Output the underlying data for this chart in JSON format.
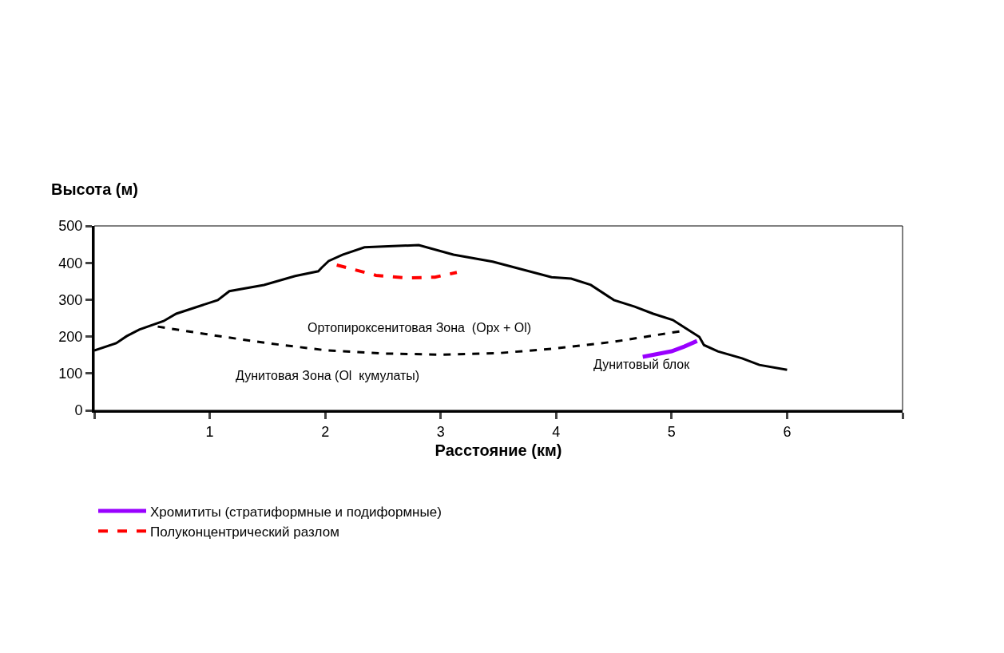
{
  "chart_data": {
    "type": "line",
    "xlabel": "Расстояние (км)",
    "ylabel": "Высота (м)",
    "xlim": [
      0,
      7
    ],
    "xticks": [
      {
        "value": 0,
        "label": null
      },
      1,
      2,
      3,
      4,
      5,
      6,
      {
        "value": 7,
        "label": null
      }
    ],
    "ylim": [
      0,
      500
    ],
    "yticks": [
      0,
      100,
      200,
      300,
      400,
      500
    ],
    "grid": false,
    "legend": "bottom left",
    "marker": "none",
    "series": [
      {
        "color": "#000000",
        "line_style": "solid",
        "x": [
          0,
          0.19,
          0.28,
          0.39,
          0.6,
          0.71,
          1.07,
          1.17,
          1.47,
          1.74,
          1.94,
          1.97,
          2.03,
          2.15,
          2.34,
          2.81,
          3.11,
          3.45,
          3.96,
          4.13,
          4.3,
          4.5,
          4.68,
          4.84,
          5.01,
          5.12,
          5.24,
          5.28,
          5.4,
          5.61,
          5.76,
          6.0
        ],
        "values": [
          162,
          182,
          201,
          219,
          242,
          262,
          299,
          323,
          340,
          364,
          377,
          387,
          405,
          422,
          442,
          448,
          422,
          403,
          361,
          357,
          340,
          299,
          281,
          262,
          245,
          223,
          199,
          177,
          160,
          141,
          123,
          110
        ]
      },
      {
        "color": "#000000",
        "line_style": "dashed",
        "x": [
          0.55,
          1,
          1.5,
          2,
          2.5,
          3,
          3.5,
          4,
          4.5,
          5.11
        ],
        "values": [
          227,
          205,
          182,
          163,
          154,
          151,
          155,
          168,
          186,
          216
        ]
      },
      {
        "name": "Хромититы (стратиформные и подиформные)",
        "color": "#9900ff",
        "line_style": "solid",
        "x": [
          4.75,
          5,
          5.11,
          5.22
        ],
        "values": [
          145,
          160,
          173,
          188
        ]
      },
      {
        "name": "Полуконцентрический разлом",
        "color": "#ff0000",
        "line_style": "dashed",
        "x": [
          2.1,
          2.44,
          2.71,
          2.95,
          3.14
        ],
        "values": [
          394,
          366,
          359,
          361,
          374
        ]
      }
    ],
    "annotations": [
      "Ортопироксенитовая Зона  (Opx + Ol)",
      "Дунитовая Зона (Ol  кумулаты)",
      "Дунитовый блок"
    ]
  }
}
